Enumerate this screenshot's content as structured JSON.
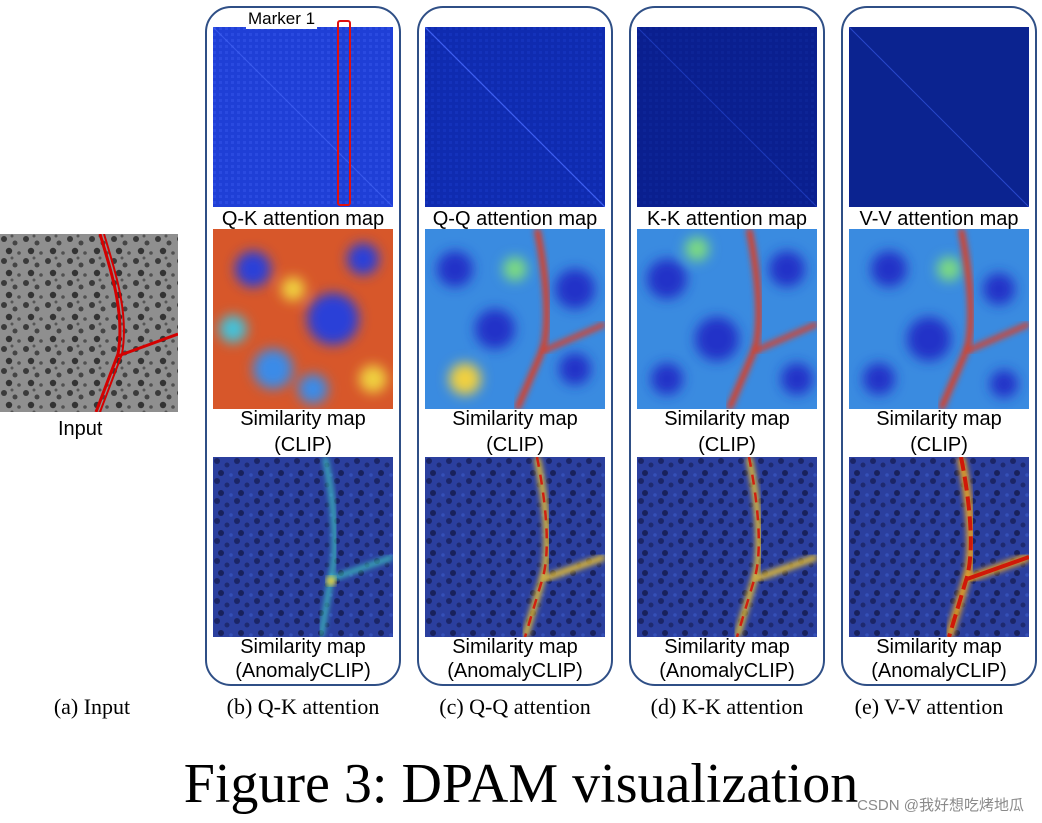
{
  "input": {
    "label": "Input",
    "caption": "(a) Input"
  },
  "marker_label": "Marker 1",
  "columns": [
    {
      "attention_label": "Q-K attention map",
      "clip_label_line1": "Similarity map",
      "clip_label_line2": "(CLIP)",
      "anomaly_label_line1": "Similarity map",
      "anomaly_label_line2": "(AnomalyCLIP)",
      "caption": "(b) Q-K attention"
    },
    {
      "attention_label": "Q-Q attention map",
      "clip_label_line1": "Similarity map",
      "clip_label_line2": "(CLIP)",
      "anomaly_label_line1": "Similarity map",
      "anomaly_label_line2": "(AnomalyCLIP)",
      "caption": "(c) Q-Q attention"
    },
    {
      "attention_label": "K-K attention map",
      "clip_label_line1": "Similarity map",
      "clip_label_line2": "(CLIP)",
      "anomaly_label_line1": "Similarity map",
      "anomaly_label_line2": "(AnomalyCLIP)",
      "caption": "(d) K-K attention"
    },
    {
      "attention_label": "V-V attention map",
      "clip_label_line1": "Similarity map",
      "clip_label_line2": "(CLIP)",
      "anomaly_label_line1": "Similarity map",
      "anomaly_label_line2": "(AnomalyCLIP)",
      "caption": "(e) V-V attention"
    }
  ],
  "figure_caption": "Figure 3: DPAM visualization",
  "watermark": "CSDN @我好想吃烤地瓜"
}
